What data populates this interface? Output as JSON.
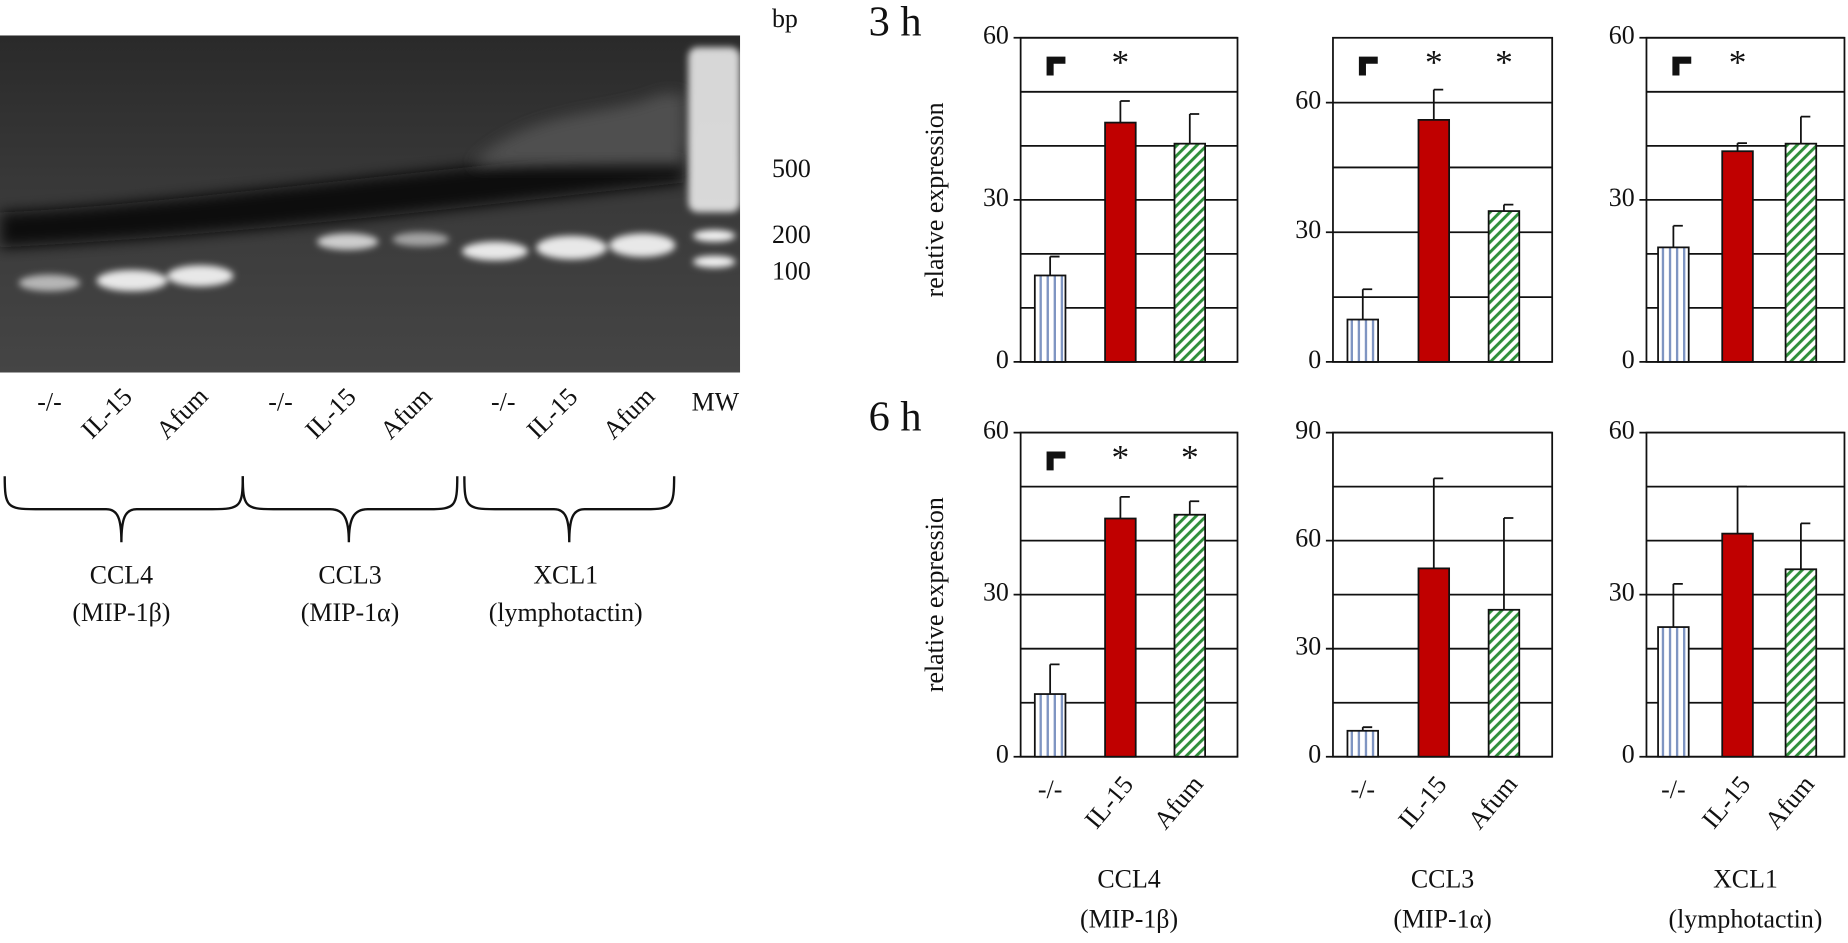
{
  "gel": {
    "unit": "bp",
    "sizes": [
      500,
      200,
      100
    ],
    "lanes": [
      "-/-",
      "IL-15",
      "Afum",
      "-/-",
      "IL-15",
      "Afum",
      "-/-",
      "IL-15",
      "Afum",
      "MW"
    ],
    "groups": [
      {
        "name": "CCL4",
        "alias": "(MIP-1β)"
      },
      {
        "name": "CCL3",
        "alias": "(MIP-1α)"
      },
      {
        "name": "XCL1",
        "alias": "(lymphotactin)"
      }
    ]
  },
  "chart_data": [
    {
      "type": "bar",
      "panel_label": "3 h",
      "ylabel": "relative expression",
      "flag": true,
      "values": [
        16,
        44.3,
        40.4
      ],
      "errors": [
        3.5,
        4,
        5.5
      ],
      "annotations": [
        null,
        "*",
        null
      ],
      "colors": [
        "#7f95c2",
        "#c00000",
        "#2f8f3a"
      ],
      "patterns": [
        "vertical",
        "solid",
        "diagonal"
      ],
      "ylim": [
        0,
        60
      ],
      "yticks": [
        0,
        30,
        60
      ],
      "minor_yticks": [
        10,
        20,
        40,
        50
      ]
    },
    {
      "type": "bar",
      "flag": true,
      "values": [
        9.8,
        56,
        34.9
      ],
      "errors": [
        7,
        7,
        1.5
      ],
      "annotations": [
        null,
        "*",
        "*"
      ],
      "colors": [
        "#7f95c2",
        "#c00000",
        "#2f8f3a"
      ],
      "patterns": [
        "vertical",
        "solid",
        "diagonal"
      ],
      "ylim": [
        0,
        75
      ],
      "yticks": [
        0,
        30,
        60
      ],
      "minor_yticks": [
        15,
        45
      ]
    },
    {
      "type": "bar",
      "flag": true,
      "values": [
        21.2,
        39,
        40.4
      ],
      "errors": [
        4,
        1.5,
        5
      ],
      "annotations": [
        null,
        "*",
        null
      ],
      "colors": [
        "#7f95c2",
        "#c00000",
        "#2f8f3a"
      ],
      "patterns": [
        "vertical",
        "solid",
        "diagonal"
      ],
      "ylim": [
        0,
        60
      ],
      "yticks": [
        0,
        30,
        60
      ],
      "minor_yticks": [
        10,
        20,
        40,
        50
      ]
    },
    {
      "type": "bar",
      "panel_label": "6 h",
      "ylabel": "relative expression",
      "flag": true,
      "categories": [
        "-/-",
        "IL-15",
        "Afum"
      ],
      "xlabel": [
        "CCL4",
        "(MIP-1β)"
      ],
      "values": [
        11.6,
        44.1,
        44.8
      ],
      "errors": [
        5.5,
        4,
        2.5
      ],
      "annotations": [
        null,
        "*",
        "*"
      ],
      "colors": [
        "#7f95c2",
        "#c00000",
        "#2f8f3a"
      ],
      "patterns": [
        "vertical",
        "solid",
        "diagonal"
      ],
      "ylim": [
        0,
        60
      ],
      "yticks": [
        0,
        30,
        60
      ],
      "minor_yticks": [
        10,
        20,
        40,
        50
      ]
    },
    {
      "type": "bar",
      "flag": false,
      "categories": [
        "-/-",
        "IL-15",
        "Afum"
      ],
      "xlabel": [
        "CCL3",
        "(MIP-1α)"
      ],
      "values": [
        7.2,
        52.3,
        40.8
      ],
      "errors": [
        1,
        25,
        25.5
      ],
      "annotations": [
        null,
        null,
        null
      ],
      "colors": [
        "#7f95c2",
        "#c00000",
        "#2f8f3a"
      ],
      "patterns": [
        "vertical",
        "solid",
        "diagonal"
      ],
      "ylim": [
        0,
        90
      ],
      "yticks": [
        0,
        30,
        60,
        90
      ],
      "minor_yticks": [
        15,
        45,
        75
      ]
    },
    {
      "type": "bar",
      "flag": false,
      "categories": [
        "-/-",
        "IL-15",
        "Afum"
      ],
      "xlabel": [
        "XCL1",
        "(lymphotactin)"
      ],
      "values": [
        24,
        41.3,
        34.7
      ],
      "errors": [
        8,
        8.7,
        8.5
      ],
      "annotations": [
        null,
        null,
        null
      ],
      "colors": [
        "#7f95c2",
        "#c00000",
        "#2f8f3a"
      ],
      "patterns": [
        "vertical",
        "solid",
        "diagonal"
      ],
      "ylim": [
        0,
        60
      ],
      "yticks": [
        0,
        30,
        60
      ],
      "minor_yticks": [
        10,
        20,
        40,
        50
      ]
    }
  ]
}
